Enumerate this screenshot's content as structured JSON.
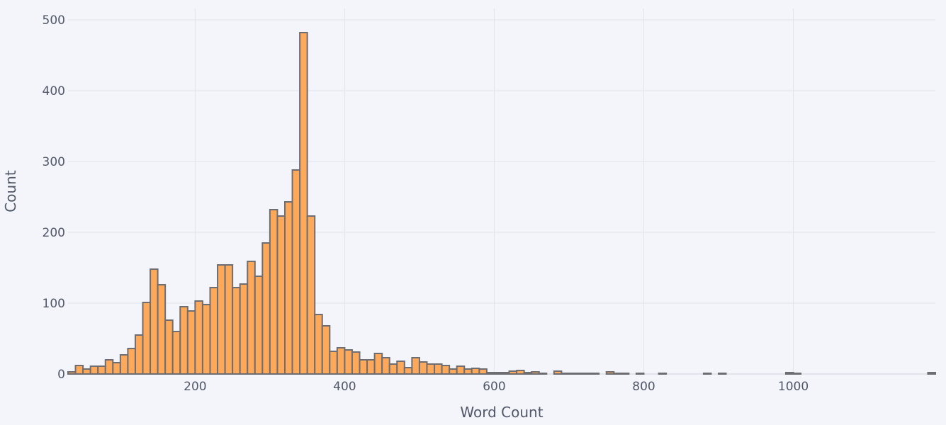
{
  "chart_data": {
    "type": "bar",
    "title": "",
    "xlabel": "Word Count",
    "ylabel": "Count",
    "xlim": [
      30,
      1190
    ],
    "ylim": [
      0,
      510
    ],
    "bin_width": 10,
    "x_ticks": [
      200,
      400,
      600,
      800,
      1000
    ],
    "x_tick_labels": [
      "200",
      "400",
      "600",
      "800",
      "1000"
    ],
    "y_ticks": [
      0,
      100,
      200,
      300,
      400,
      500
    ],
    "y_tick_labels": [
      "0",
      "100",
      "200",
      "300",
      "400",
      "500"
    ],
    "grid": true,
    "bar_color": "#fea95a",
    "bar_outline_color": "#6e6e72",
    "background_color": "#f4f5fa",
    "bin_starts": [
      30,
      40,
      50,
      60,
      70,
      80,
      90,
      100,
      110,
      120,
      130,
      140,
      150,
      160,
      170,
      180,
      190,
      200,
      210,
      220,
      230,
      240,
      250,
      260,
      270,
      280,
      290,
      300,
      310,
      320,
      330,
      340,
      350,
      360,
      370,
      380,
      390,
      400,
      410,
      420,
      430,
      440,
      450,
      460,
      470,
      480,
      490,
      500,
      510,
      520,
      530,
      540,
      550,
      560,
      570,
      580,
      590,
      600,
      610,
      620,
      630,
      640,
      650,
      660,
      680,
      690,
      700,
      710,
      720,
      730,
      750,
      760,
      770,
      790,
      820,
      880,
      900,
      990,
      1000,
      1180
    ],
    "values": [
      3,
      12,
      7,
      11,
      11,
      20,
      16,
      27,
      36,
      55,
      101,
      148,
      126,
      76,
      60,
      95,
      89,
      103,
      98,
      122,
      154,
      154,
      122,
      127,
      159,
      138,
      185,
      232,
      223,
      243,
      288,
      482,
      223,
      84,
      68,
      32,
      37,
      34,
      31,
      20,
      20,
      29,
      23,
      14,
      18,
      9,
      23,
      17,
      14,
      14,
      12,
      7,
      11,
      7,
      8,
      7,
      2,
      2,
      2,
      4,
      5,
      2,
      3,
      1,
      4,
      1,
      1,
      1,
      1,
      1,
      3,
      1,
      1,
      1,
      1,
      1,
      1,
      2,
      1,
      2
    ]
  }
}
